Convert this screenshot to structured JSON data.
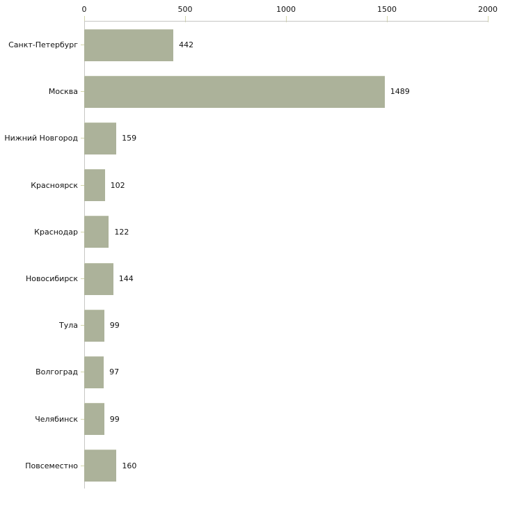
{
  "chart_data": {
    "type": "bar",
    "orientation": "horizontal",
    "title": "",
    "xlabel": "",
    "ylabel": "",
    "categories": [
      "Санкт-Петербург",
      "Москва",
      "Нижний Новгород",
      "Красноярск",
      "Краснодар",
      "Новосибирск",
      "Тула",
      "Волгоград",
      "Челябинск",
      "Повсеместно"
    ],
    "values": [
      442,
      1489,
      159,
      102,
      122,
      144,
      99,
      97,
      99,
      160
    ],
    "value_labels": [
      "442",
      "1489",
      "159",
      "102",
      "122",
      "144",
      "99",
      "97",
      "99",
      "160"
    ],
    "x_ticks": [
      0,
      500,
      1000,
      1500,
      2000
    ],
    "x_tick_labels": [
      "0",
      "500",
      "1000",
      "1500",
      "2000"
    ],
    "xlim": [
      0,
      2000
    ],
    "grid": false,
    "legend": "none",
    "axis_position": "top",
    "colors": {
      "bar": "#acb29a",
      "bar_edge": "#bfc4ae",
      "axis_line": "#c6c6c3",
      "tick_mark": "#d2d5a9",
      "text": "#111111",
      "background": "#ffffff"
    }
  }
}
